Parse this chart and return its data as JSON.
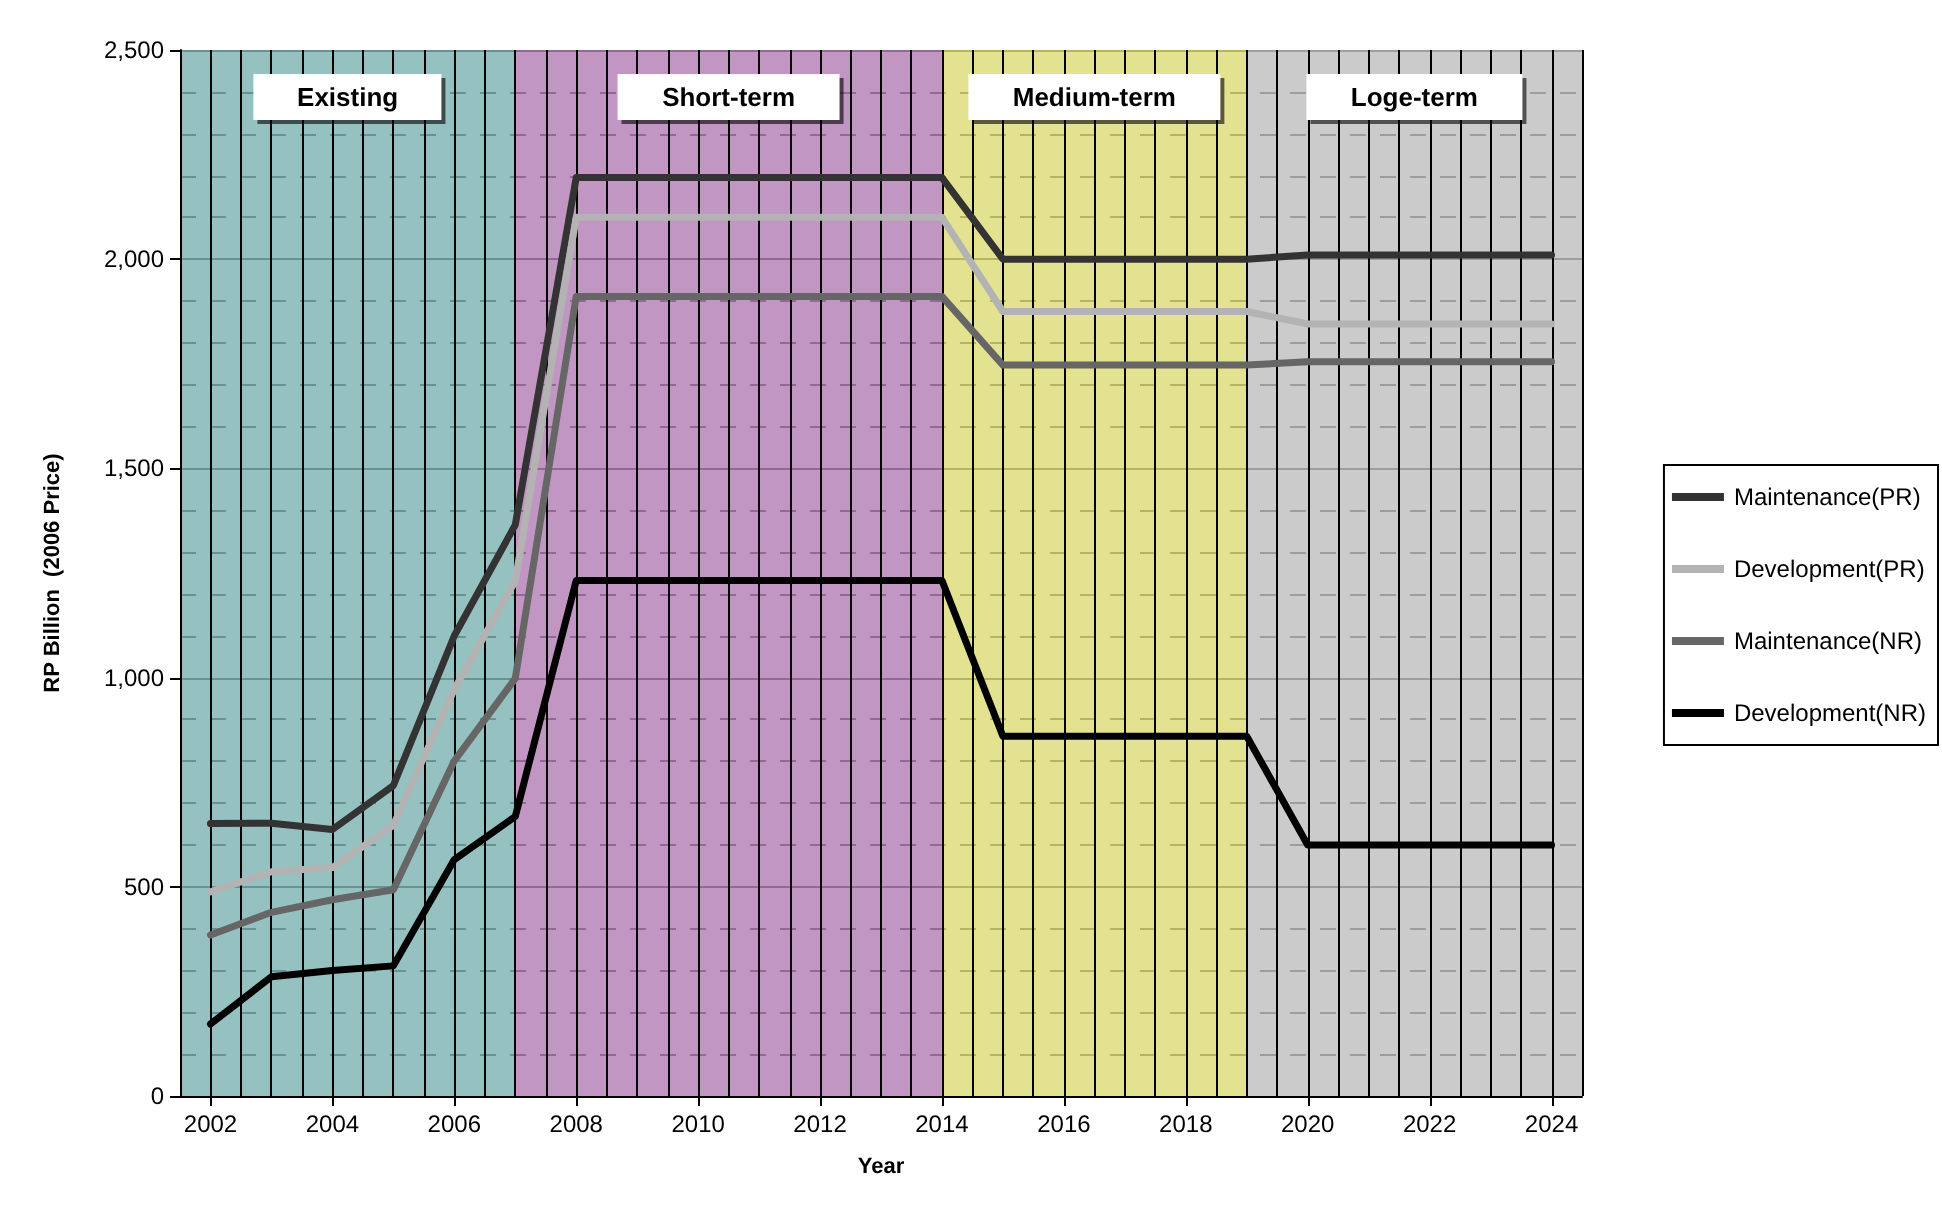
{
  "chart_data": {
    "type": "line",
    "xlabel": "Year",
    "ylabel": "RP Billion  (2006 Price)",
    "x": [
      2002,
      2003,
      2004,
      2005,
      2006,
      2007,
      2008,
      2009,
      2010,
      2011,
      2012,
      2013,
      2014,
      2015,
      2016,
      2017,
      2018,
      2019,
      2020,
      2021,
      2022,
      2023,
      2024
    ],
    "xlim": [
      2001.5,
      2024.5
    ],
    "xticks": [
      2002,
      2004,
      2006,
      2008,
      2010,
      2012,
      2014,
      2016,
      2018,
      2020,
      2022,
      2024
    ],
    "ylim": [
      0,
      2500
    ],
    "yticks": [
      0,
      500,
      {
        "value": 1000,
        "label": "1,000"
      },
      {
        "value": 1500,
        "label": "1,500"
      },
      {
        "value": 2000,
        "label": "2,000"
      },
      {
        "value": 2500,
        "label": "2,500"
      }
    ],
    "grid": true,
    "legend": "right",
    "line_style": "solid",
    "series": [
      {
        "name": "Maintenance(PR)",
        "color": "#333333",
        "values": [
          651,
          652,
          637,
          742,
          1100,
          1365,
          2195,
          2195,
          2195,
          2195,
          2195,
          2195,
          2195,
          2000,
          2000,
          2000,
          2000,
          2000,
          2010,
          2010,
          2010,
          2010,
          2010
        ]
      },
      {
        "name": "Development(PR)",
        "color": "#b3b3b3",
        "values": [
          488,
          536,
          546,
          647,
          972,
          1231,
          2100,
          2100,
          2100,
          2100,
          2100,
          2100,
          2100,
          1875,
          1875,
          1875,
          1875,
          1875,
          1845,
          1845,
          1845,
          1845,
          1845
        ]
      },
      {
        "name": "Maintenance(NR)",
        "color": "#666666",
        "values": [
          385,
          439,
          469,
          493,
          801,
          998,
          1911,
          1911,
          1911,
          1911,
          1911,
          1911,
          1911,
          1747,
          1747,
          1747,
          1747,
          1747,
          1755,
          1755,
          1755,
          1755,
          1755
        ]
      },
      {
        "name": "Development(NR)",
        "color": "#000000",
        "values": [
          172,
          285,
          300,
          311,
          565,
          668,
          1232,
          1232,
          1232,
          1232,
          1232,
          1232,
          1232,
          860,
          860,
          860,
          860,
          860,
          600,
          600,
          600,
          600,
          600
        ]
      }
    ],
    "bands": [
      {
        "axis": "x",
        "from": 2001.5,
        "to": 2007,
        "label": "Existing",
        "color": "#7fb3b3"
      },
      {
        "axis": "x",
        "from": 2007,
        "to": 2014,
        "label": "Short-term",
        "color": "#b57fb5"
      },
      {
        "axis": "x",
        "from": 2014,
        "to": 2019,
        "label": "Medium-term",
        "color": "#dcdc78"
      },
      {
        "axis": "x",
        "from": 2019,
        "to": 2024.5,
        "label": "Loge-term",
        "color": "#c0c0c0"
      }
    ]
  }
}
